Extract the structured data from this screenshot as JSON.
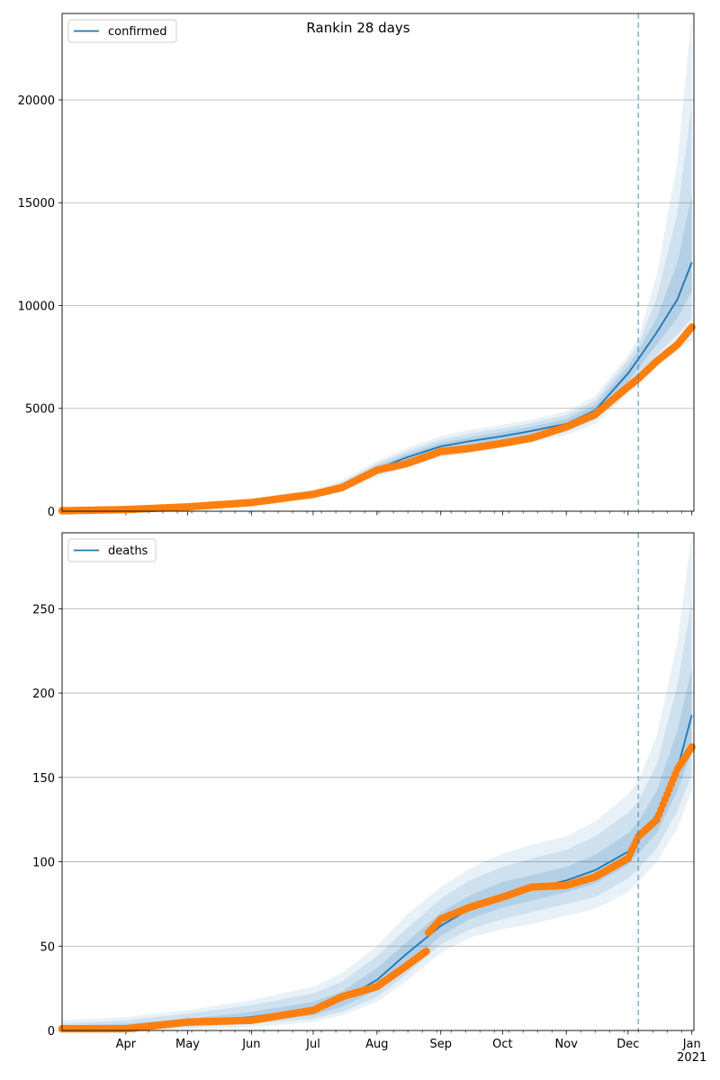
{
  "figure": {
    "title": "Rankin 28 days"
  },
  "colors": {
    "model": "#1f77b4",
    "observed": "#ff7f0e",
    "band": "#1f77b4",
    "grid": "#b0b0b0",
    "vline": "#1f77b4"
  },
  "chart_data": [
    {
      "type": "line",
      "title": "",
      "legend": {
        "entries": [
          "confirmed"
        ],
        "placement": "top-left"
      },
      "ylim": [
        0,
        24200
      ],
      "yticks": [
        0,
        5000,
        10000,
        15000,
        20000
      ],
      "grid": "y",
      "x_domain": [
        "2020-03-01",
        "2021-01-02"
      ],
      "month_ticks": [
        "2020-04-01",
        "2020-05-01",
        "2020-06-01",
        "2020-07-01",
        "2020-08-01",
        "2020-09-01",
        "2020-10-01",
        "2020-11-01",
        "2020-12-01",
        "2021-01-01"
      ],
      "xticklabels_shown": false,
      "forecast_start": "2020-12-06",
      "series": [
        {
          "name": "confirmed",
          "x": [
            "2020-03-01",
            "2020-04-01",
            "2020-05-01",
            "2020-06-01",
            "2020-07-01",
            "2020-07-15",
            "2020-08-01",
            "2020-08-15",
            "2020-09-01",
            "2020-09-15",
            "2020-10-01",
            "2020-10-15",
            "2020-11-01",
            "2020-11-15",
            "2020-12-01",
            "2020-12-06",
            "2020-12-15",
            "2020-12-25",
            "2021-01-01"
          ],
          "values": [
            30,
            90,
            230,
            430,
            800,
            1200,
            2050,
            2600,
            3150,
            3400,
            3650,
            3900,
            4250,
            4900,
            6700,
            7400,
            8700,
            10300,
            12100
          ],
          "bands": [
            {
              "lower": [
                0,
                40,
                130,
                300,
                600,
                950,
                1650,
                2100,
                2600,
                2850,
                3100,
                3350,
                3700,
                4250,
                5700,
                6200,
                7000,
                7800,
                8300
              ],
              "upper": [
                120,
                200,
                380,
                620,
                1050,
                1500,
                2450,
                3050,
                3650,
                3950,
                4200,
                4450,
                4850,
                5600,
                7600,
                8400,
                11500,
                17000,
                24200
              ]
            },
            {
              "lower": [
                0,
                55,
                160,
                340,
                650,
                1030,
                1750,
                2220,
                2750,
                3000,
                3250,
                3500,
                3850,
                4450,
                6000,
                6600,
                7600,
                8600,
                9400
              ],
              "upper": [
                90,
                160,
                320,
                560,
                970,
                1400,
                2320,
                2900,
                3480,
                3770,
                4030,
                4280,
                4680,
                5380,
                7350,
                8100,
                10400,
                14500,
                19800
              ]
            },
            {
              "lower": [
                5,
                68,
                190,
                375,
                705,
                1100,
                1860,
                2360,
                2900,
                3150,
                3400,
                3650,
                4000,
                4650,
                6300,
                6950,
                8100,
                9400,
                10700
              ],
              "upper": [
                60,
                125,
                275,
                500,
                895,
                1300,
                2200,
                2760,
                3320,
                3580,
                3850,
                4100,
                4480,
                5170,
                7050,
                7800,
                9400,
                12100,
                15400
              ]
            }
          ]
        },
        {
          "name": "observed",
          "x": [
            "2020-03-01",
            "2020-04-01",
            "2020-05-01",
            "2020-06-01",
            "2020-07-01",
            "2020-07-15",
            "2020-08-01",
            "2020-08-15",
            "2020-09-01",
            "2020-09-15",
            "2020-10-01",
            "2020-10-15",
            "2020-11-01",
            "2020-11-15",
            "2020-12-01",
            "2020-12-06",
            "2020-12-15",
            "2020-12-25",
            "2021-01-01"
          ],
          "values": [
            20,
            80,
            210,
            420,
            820,
            1150,
            2000,
            2300,
            2900,
            3050,
            3300,
            3550,
            4100,
            4700,
            6050,
            6450,
            7300,
            8100,
            8950
          ],
          "marker": "circle"
        }
      ]
    },
    {
      "type": "line",
      "title": "",
      "legend": {
        "entries": [
          "deaths"
        ],
        "placement": "top-left"
      },
      "ylim": [
        0,
        295
      ],
      "yticks": [
        0,
        50,
        100,
        150,
        200,
        250
      ],
      "grid": "y",
      "x_domain": [
        "2020-03-01",
        "2021-01-02"
      ],
      "month_ticks": [
        "2020-04-01",
        "2020-05-01",
        "2020-06-01",
        "2020-07-01",
        "2020-08-01",
        "2020-09-01",
        "2020-10-01",
        "2020-11-01",
        "2020-12-01",
        "2021-01-01"
      ],
      "xticklabels": [
        "Apr",
        "May",
        "Jun",
        "Jul",
        "Aug",
        "Sep",
        "Oct",
        "Nov",
        "Dec",
        "Jan\n2021"
      ],
      "forecast_start": "2020-12-06",
      "series": [
        {
          "name": "deaths",
          "x": [
            "2020-03-01",
            "2020-04-01",
            "2020-05-01",
            "2020-06-01",
            "2020-07-01",
            "2020-07-15",
            "2020-08-01",
            "2020-08-15",
            "2020-09-01",
            "2020-09-15",
            "2020-10-01",
            "2020-10-15",
            "2020-11-01",
            "2020-11-15",
            "2020-12-01",
            "2020-12-06",
            "2020-12-15",
            "2020-12-25",
            "2021-01-01"
          ],
          "values": [
            1,
            2,
            5,
            8,
            13,
            18,
            30,
            45,
            62,
            72,
            80,
            84,
            89,
            95,
            106,
            114,
            128,
            155,
            187
          ],
          "bands": [
            {
              "lower": [
                0,
                0,
                1,
                2,
                5,
                9,
                17,
                29,
                46,
                55,
                60,
                63,
                68,
                72,
                82,
                88,
                100,
                120,
                142
              ],
              "upper": [
                6,
                8,
                12,
                18,
                26,
                34,
                50,
                68,
                85,
                96,
                105,
                110,
                115,
                124,
                140,
                148,
                175,
                230,
                295
              ]
            },
            {
              "lower": [
                0,
                0,
                2,
                4,
                7,
                11,
                20,
                33,
                51,
                60,
                66,
                70,
                75,
                79,
                90,
                96,
                108,
                130,
                152
              ],
              "upper": [
                4,
                6,
                10,
                15,
                22,
                29,
                44,
                60,
                78,
                89,
                97,
                102,
                107,
                115,
                129,
                136,
                158,
                205,
                255
              ]
            },
            {
              "lower": [
                0,
                1,
                3,
                5,
                9,
                14,
                24,
                38,
                56,
                66,
                73,
                77,
                82,
                87,
                98,
                105,
                117,
                142,
                165
              ],
              "upper": [
                3,
                4,
                7,
                11,
                17,
                23,
                37,
                52,
                70,
                80,
                88,
                92,
                97,
                104,
                117,
                124,
                142,
                178,
                215
              ]
            }
          ]
        },
        {
          "name": "observed",
          "x": [
            "2020-03-01",
            "2020-04-01",
            "2020-05-01",
            "2020-06-01",
            "2020-07-01",
            "2020-07-15",
            "2020-08-01",
            "2020-08-15",
            "2020-08-25",
            "2020-08-26",
            "2020-09-01",
            "2020-09-15",
            "2020-10-01",
            "2020-10-15",
            "2020-11-01",
            "2020-11-15",
            "2020-12-01",
            "2020-12-06",
            "2020-12-15",
            "2020-12-25",
            "2021-01-01"
          ],
          "values": [
            1,
            1,
            5,
            6,
            12,
            20,
            26,
            38,
            47,
            58,
            66,
            73,
            79,
            85,
            86,
            91,
            102,
            115,
            125,
            155,
            168
          ],
          "marker": "circle"
        }
      ]
    }
  ]
}
